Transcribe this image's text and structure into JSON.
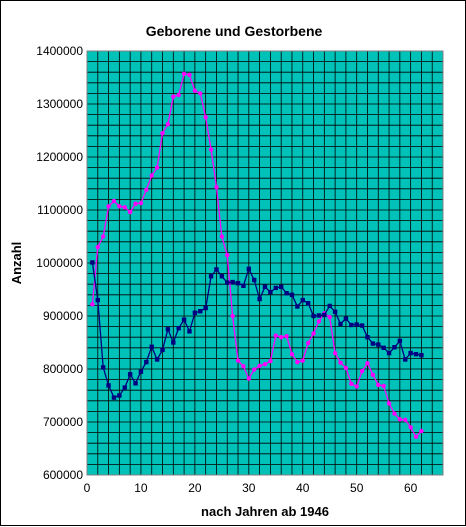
{
  "chart_data": {
    "type": "line",
    "title": "Geborene und Gestorbene",
    "xlabel": "nach Jahren ab 1946",
    "ylabel": "Anzahl",
    "xlim": [
      0,
      66
    ],
    "ylim": [
      600000,
      1400000
    ],
    "x_ticks": [
      0,
      10,
      20,
      30,
      40,
      50,
      60
    ],
    "x_tick_labels": [
      "0",
      "10",
      "20",
      "30",
      "40",
      "50",
      "60"
    ],
    "y_ticks": [
      600000,
      700000,
      800000,
      900000,
      1000000,
      1100000,
      1200000,
      1300000,
      1400000
    ],
    "y_tick_labels": [
      "600000",
      "700000",
      "800000",
      "900000",
      "1000000",
      "1100000",
      "1200000",
      "1300000",
      "1400000"
    ],
    "grid": true,
    "plot_background": "#00C2B8",
    "legend": "none",
    "x": [
      1,
      2,
      3,
      4,
      5,
      6,
      7,
      8,
      9,
      10,
      11,
      12,
      13,
      14,
      15,
      16,
      17,
      18,
      19,
      20,
      21,
      22,
      23,
      24,
      25,
      26,
      27,
      28,
      29,
      30,
      31,
      32,
      33,
      34,
      35,
      36,
      37,
      38,
      39,
      40,
      41,
      42,
      43,
      44,
      45,
      46,
      47,
      48,
      49,
      50,
      51,
      52,
      53,
      54,
      55,
      56,
      57,
      58,
      59,
      60,
      61,
      62
    ],
    "series": [
      {
        "color": "#FF00FF",
        "marker": "circle",
        "values": [
          922000,
          1030000,
          1050000,
          1107000,
          1117000,
          1107000,
          1105000,
          1096000,
          1112000,
          1113000,
          1138000,
          1165000,
          1180000,
          1245000,
          1262000,
          1314000,
          1317000,
          1357000,
          1355000,
          1325000,
          1320000,
          1275000,
          1214000,
          1143000,
          1050000,
          1015000,
          900000,
          816000,
          805000,
          782000,
          799000,
          806000,
          809000,
          815000,
          863000,
          860000,
          862000,
          828000,
          813000,
          816000,
          849000,
          867000,
          890000,
          905000,
          898000,
          830000,
          812000,
          802000,
          772000,
          767000,
          796000,
          811000,
          789000,
          770000,
          768000,
          735000,
          716000,
          705000,
          704000,
          690000,
          672000,
          683000
        ]
      },
      {
        "color": "#000080",
        "marker": "square",
        "values": [
          1001000,
          930000,
          803000,
          769000,
          746000,
          750000,
          765000,
          790000,
          773000,
          795000,
          813000,
          842000,
          818000,
          836000,
          875000,
          850000,
          877000,
          893000,
          871000,
          906000,
          909000,
          915000,
          975000,
          988000,
          975000,
          963000,
          964000,
          962000,
          957000,
          989000,
          968000,
          932000,
          955000,
          945000,
          953000,
          955000,
          943000,
          940000,
          918000,
          930000,
          924000,
          900000,
          901000,
          902000,
          919000,
          908000,
          885000,
          895000,
          883000,
          884000,
          882000,
          860000,
          848000,
          846000,
          840000,
          830000,
          841000,
          853000,
          818000,
          830000,
          828000,
          826000
        ]
      }
    ]
  }
}
